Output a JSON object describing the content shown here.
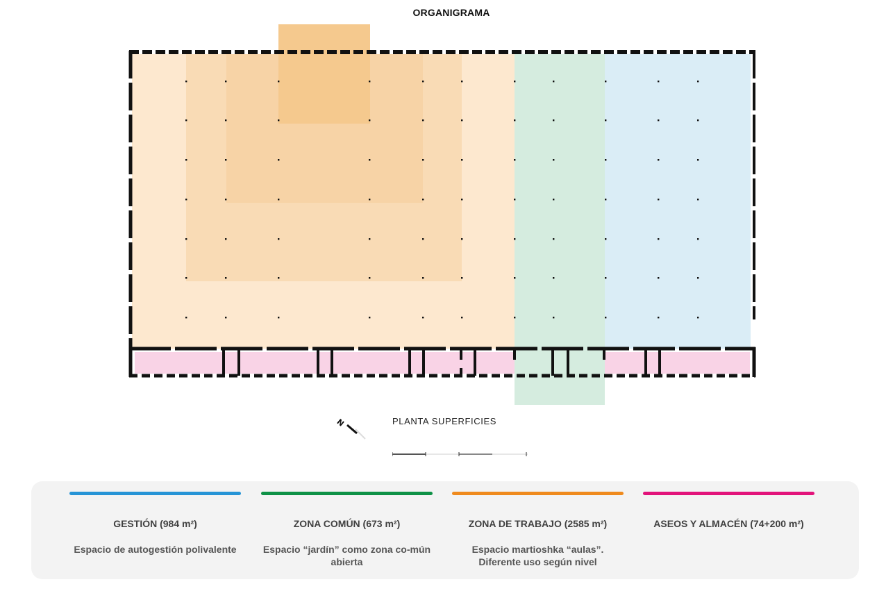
{
  "title": "ORGANIGRAMA",
  "plan": {
    "label": "PLANTA SUPERFICIES",
    "north_symbol": "N",
    "zones": {
      "work": "#fde8cf",
      "work_mid": "#f9dbb5",
      "work_inner": "#f7d3a6",
      "work_core": "#f5c98e",
      "common": "#d5ecdf",
      "management": "#daedf6",
      "toilets": "#f9d3e6"
    }
  },
  "legend": [
    {
      "color": "#2694d6",
      "title": "GESTIÓN (984 m²)",
      "desc": "Espacio de autogestión polivalente"
    },
    {
      "color": "#0e9146",
      "title": "ZONA COMÚN (673 m²)",
      "desc": "Espacio “jardín” como zona co-mún abierta"
    },
    {
      "color": "#ef8a1d",
      "title": "ZONA DE TRABAJO (2585 m²)",
      "desc": "Espacio martioshka “aulas”. Diferente uso según nivel"
    },
    {
      "color": "#e2137a",
      "title": "ASEOS Y ALMACÉN (74+200 m²)",
      "desc": ""
    }
  ]
}
